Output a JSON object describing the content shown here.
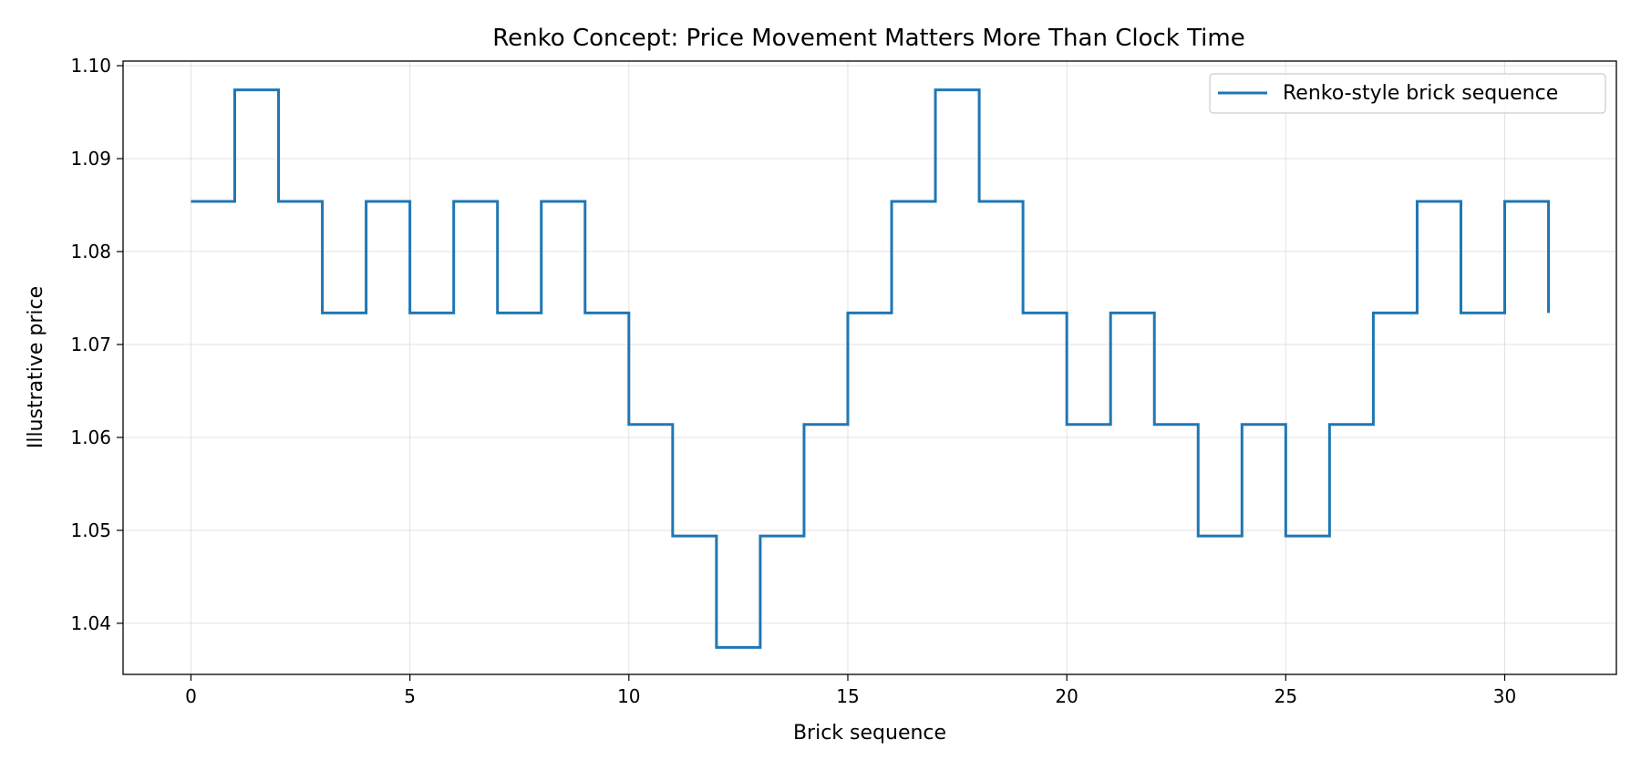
{
  "chart_data": {
    "type": "line",
    "drawstyle": "steps-post",
    "title": "Renko Concept: Price Movement Matters More Than Clock Time",
    "xlabel": "Brick sequence",
    "ylabel": "Illustrative price",
    "xlim": [
      -1.55,
      32.55
    ],
    "ylim": [
      1.0345,
      1.1005
    ],
    "xticks": [
      0,
      5,
      10,
      15,
      20,
      25,
      30
    ],
    "yticks": [
      1.04,
      1.05,
      1.06,
      1.07,
      1.08,
      1.09,
      1.1
    ],
    "xtick_labels": [
      "0",
      "5",
      "10",
      "15",
      "20",
      "25",
      "30"
    ],
    "ytick_labels": [
      "1.04",
      "1.05",
      "1.06",
      "1.07",
      "1.08",
      "1.09",
      "1.10"
    ],
    "grid": true,
    "legend_position": "top-right",
    "series": [
      {
        "name": "Renko-style brick sequence",
        "color": "#1f77b4",
        "x": [
          0,
          1,
          2,
          3,
          4,
          5,
          6,
          7,
          8,
          9,
          10,
          11,
          12,
          13,
          14,
          15,
          16,
          17,
          18,
          19,
          20,
          21,
          22,
          23,
          24,
          25,
          26,
          27,
          28,
          29,
          30,
          31
        ],
        "y": [
          1.0854,
          1.0974,
          1.0854,
          1.0734,
          1.0854,
          1.0734,
          1.0854,
          1.0734,
          1.0854,
          1.0734,
          1.0614,
          1.0494,
          1.0374,
          1.0494,
          1.0614,
          1.0734,
          1.0854,
          1.0974,
          1.0854,
          1.0734,
          1.0614,
          1.0734,
          1.0614,
          1.0494,
          1.0614,
          1.0494,
          1.0614,
          1.0734,
          1.0854,
          1.0734,
          1.0854,
          1.0734
        ]
      }
    ]
  }
}
